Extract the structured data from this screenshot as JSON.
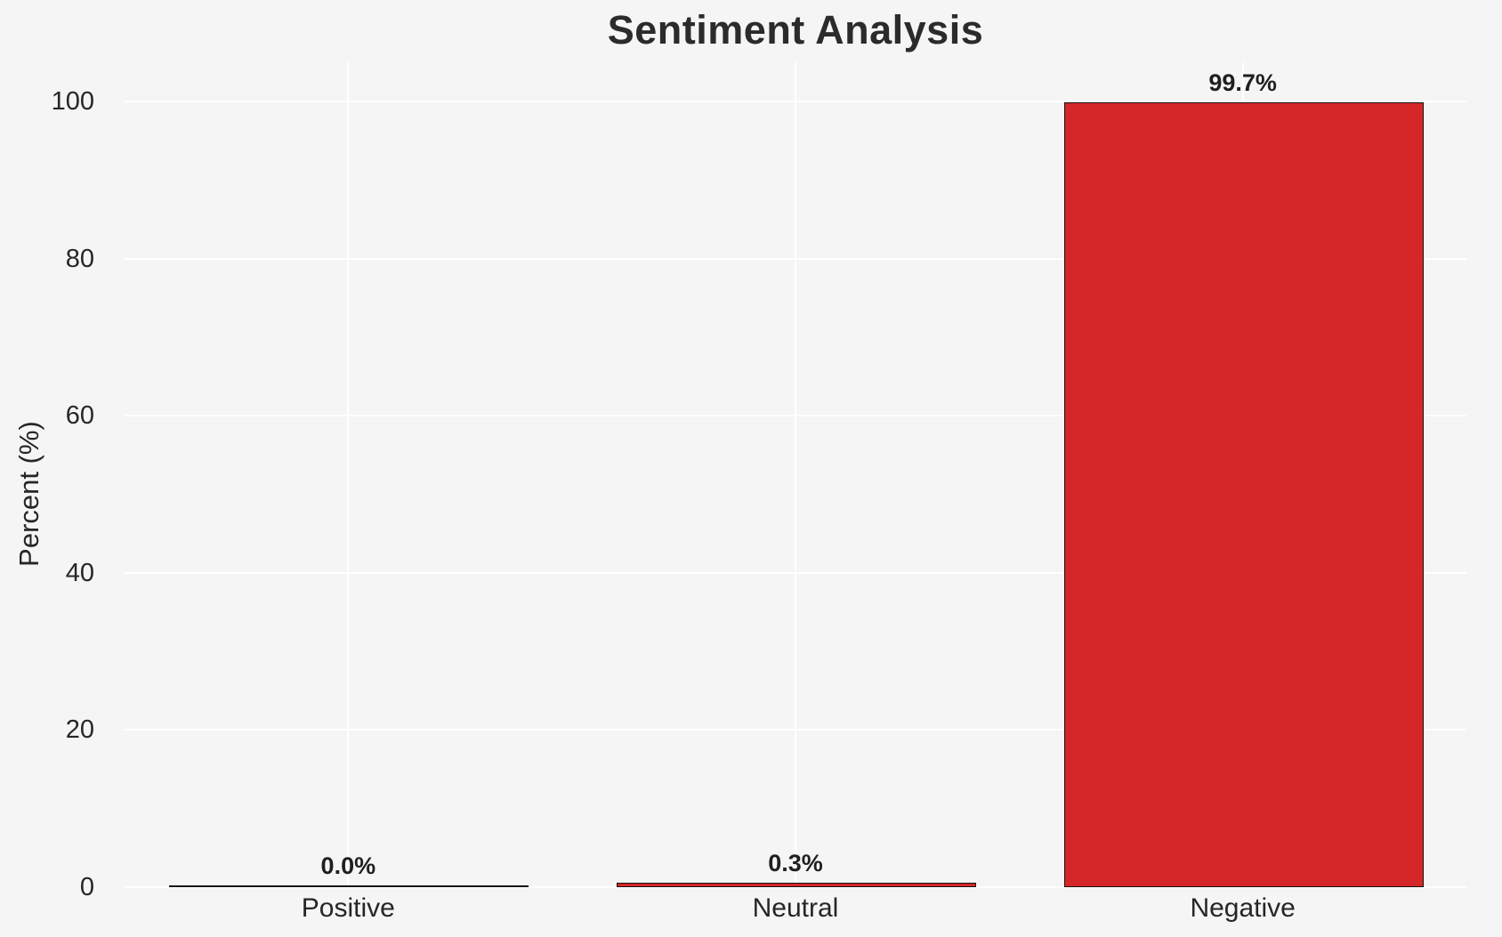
{
  "chart_data": {
    "type": "bar",
    "title": "Sentiment Analysis",
    "ylabel": "Percent (%)",
    "xlabel": "",
    "categories": [
      "Positive",
      "Neutral",
      "Negative"
    ],
    "values": [
      0.0,
      0.3,
      99.7
    ],
    "value_labels": [
      "0.0%",
      "0.3%",
      "99.7%"
    ],
    "yticks": [
      0,
      20,
      40,
      60,
      80,
      100
    ],
    "ylim": [
      0,
      105
    ],
    "grid": true,
    "legend_position": "none",
    "colors": {
      "background": "#f5f5f6",
      "gridline": "#ffffff",
      "bar_fill": "#d62728",
      "bar_edge": "#141414",
      "title_text": "#2b2b2b",
      "tick_text": "#262626"
    }
  }
}
